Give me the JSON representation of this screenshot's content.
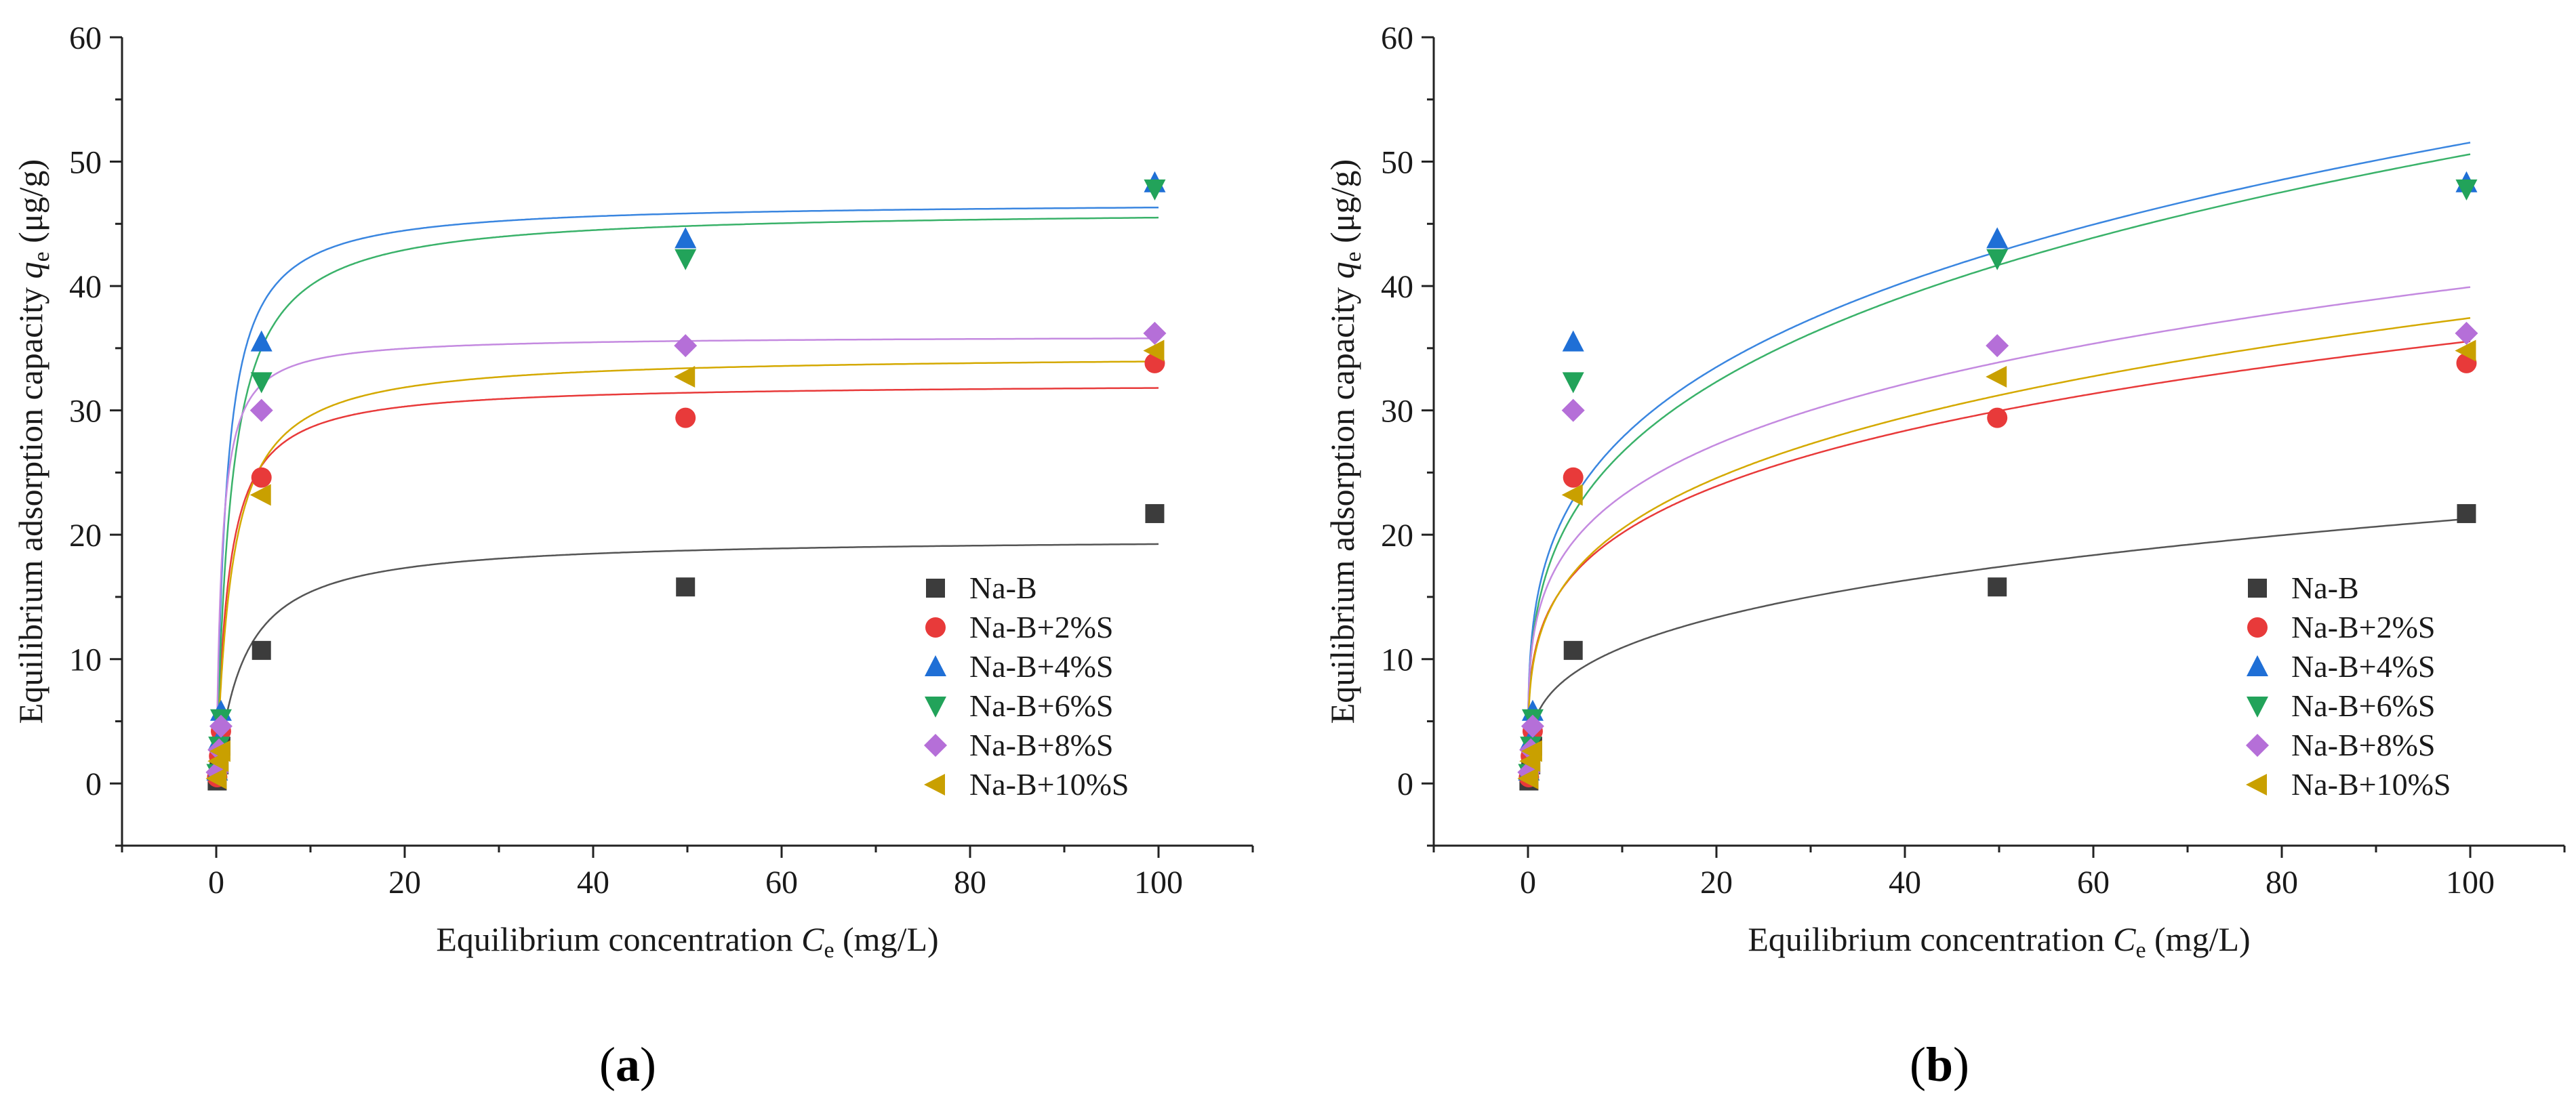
{
  "chart_data": [
    {
      "panel": "a",
      "type": "scatter",
      "xlabel_prefix": "Equilibrium concentration ",
      "xlabel_var": "C",
      "xlabel_sub": "e",
      "xlabel_suffix": " (mg/L)",
      "ylabel_prefix": "Equilibrium adsorption capacity ",
      "ylabel_var": "q",
      "ylabel_sub": "e",
      "ylabel_suffix": " (μg/g)",
      "xlim": [
        -10,
        110
      ],
      "ylim": [
        -5,
        60
      ],
      "xticks": [
        0,
        20,
        40,
        60,
        80,
        100
      ],
      "yticks": [
        0,
        10,
        20,
        30,
        40,
        50,
        60
      ],
      "x": [
        0.1,
        0.3,
        0.5,
        4.8,
        49.8,
        99.6
      ],
      "legend_position": "bottom-right",
      "fit_model": "langmuir",
      "series": [
        {
          "name": "Na-B",
          "marker": "square",
          "color": "#3c3c3c",
          "fit_color": "#555555",
          "y": [
            0.2,
            1.5,
            3.0,
            10.7,
            15.8,
            21.7
          ],
          "fit": {
            "qm": 19.8,
            "K": 0.35
          }
        },
        {
          "name": "Na-B+2%S",
          "marker": "circle",
          "color": "#e83a3a",
          "fit_color": "#e83a3a",
          "y": [
            0.5,
            2.2,
            4.2,
            24.6,
            29.4,
            33.8
          ],
          "fit": {
            "qm": 32.2,
            "K": 0.8
          }
        },
        {
          "name": "Na-B+4%S",
          "marker": "triangle-up",
          "color": "#1f6fd6",
          "fit_color": "#3a86e0",
          "y": [
            1.0,
            3.5,
            5.8,
            35.5,
            43.8,
            48.3
          ],
          "fit": {
            "qm": 46.8,
            "K": 0.95
          }
        },
        {
          "name": "Na-B+6%S",
          "marker": "triangle-down",
          "color": "#22a35a",
          "fit_color": "#3ab26a",
          "y": [
            0.8,
            3.0,
            5.2,
            32.3,
            42.2,
            47.8
          ],
          "fit": {
            "qm": 46.2,
            "K": 0.65
          }
        },
        {
          "name": "Na-B+8%S",
          "marker": "diamond",
          "color": "#b56fd8",
          "fit_color": "#c48ae0",
          "y": [
            0.9,
            2.7,
            4.6,
            30.0,
            35.2,
            36.2
          ],
          "fit": {
            "qm": 36.0,
            "K": 1.7
          }
        },
        {
          "name": "Na-B+10%S",
          "marker": "triangle-left",
          "color": "#c9a000",
          "fit_color": "#d4a900",
          "y": [
            0.4,
            1.8,
            2.6,
            23.2,
            32.7,
            34.8
          ],
          "fit": {
            "qm": 34.5,
            "K": 0.6
          }
        }
      ]
    },
    {
      "panel": "b",
      "type": "scatter",
      "xlabel_prefix": "Equilibrium concentration ",
      "xlabel_var": "C",
      "xlabel_sub": "e",
      "xlabel_suffix": " (mg/L)",
      "ylabel_prefix": "Equilibrium adsorption capacity ",
      "ylabel_var": "q",
      "ylabel_sub": "e",
      "ylabel_suffix": " (μg/g)",
      "xlim": [
        -10,
        110
      ],
      "ylim": [
        -5,
        60
      ],
      "xticks": [
        0,
        20,
        40,
        60,
        80,
        100
      ],
      "yticks": [
        0,
        10,
        20,
        30,
        40,
        50,
        60
      ],
      "x": [
        0.1,
        0.3,
        0.5,
        4.8,
        49.8,
        99.6
      ],
      "legend_position": "bottom-right",
      "fit_model": "freundlich",
      "series": [
        {
          "name": "Na-B",
          "marker": "square",
          "color": "#3c3c3c",
          "fit_color": "#555555",
          "y": [
            0.2,
            1.5,
            3.0,
            10.7,
            15.8,
            21.7
          ],
          "fit": {
            "Kf": 5.6,
            "n": 0.29
          }
        },
        {
          "name": "Na-B+2%S",
          "marker": "circle",
          "color": "#e83a3a",
          "fit_color": "#e83a3a",
          "y": [
            0.5,
            2.2,
            4.2,
            24.6,
            29.4,
            33.8
          ],
          "fit": {
            "Kf": 11.4,
            "n": 0.247
          }
        },
        {
          "name": "Na-B+4%S",
          "marker": "triangle-up",
          "color": "#1f6fd6",
          "fit_color": "#3a86e0",
          "y": [
            1.0,
            3.5,
            5.8,
            35.5,
            43.8,
            48.3
          ],
          "fit": {
            "Kf": 15.0,
            "n": 0.268
          }
        },
        {
          "name": "Na-B+6%S",
          "marker": "triangle-down",
          "color": "#22a35a",
          "fit_color": "#3ab26a",
          "y": [
            0.8,
            3.0,
            5.2,
            32.3,
            42.2,
            47.8
          ],
          "fit": {
            "Kf": 14.0,
            "n": 0.279
          }
        },
        {
          "name": "Na-B+8%S",
          "marker": "diamond",
          "color": "#b56fd8",
          "fit_color": "#c48ae0",
          "y": [
            0.9,
            2.7,
            4.6,
            30.0,
            35.2,
            36.2
          ],
          "fit": {
            "Kf": 13.4,
            "n": 0.237
          }
        },
        {
          "name": "Na-B+10%S",
          "marker": "triangle-left",
          "color": "#c9a000",
          "fit_color": "#d4a900",
          "y": [
            0.4,
            1.8,
            2.6,
            23.2,
            32.7,
            34.8
          ],
          "fit": {
            "Kf": 11.2,
            "n": 0.262
          }
        }
      ]
    }
  ],
  "panel_labels": {
    "a": "a",
    "b": "b"
  }
}
